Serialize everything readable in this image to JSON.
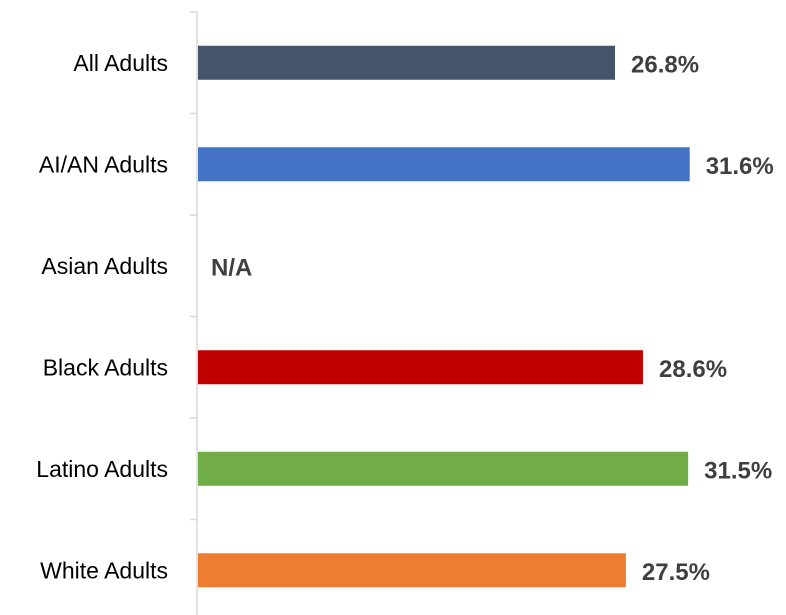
{
  "chart_data": {
    "type": "bar",
    "orientation": "horizontal",
    "categories": [
      "All Adults",
      "AI/AN Adults",
      "Asian Adults",
      "Black Adults",
      "Latino Adults",
      "White Adults"
    ],
    "values": [
      26.8,
      31.6,
      null,
      28.6,
      31.5,
      27.5
    ],
    "data_labels": [
      "26.8%",
      "31.6%",
      "N/A",
      "28.6%",
      "31.5%",
      "27.5%"
    ],
    "colors": [
      "#44546a",
      "#4472c4",
      "#a5a5a5",
      "#c00000",
      "#70ad47",
      "#ed7d31"
    ],
    "xlim": [
      0,
      34
    ],
    "grid": false,
    "legend": "none"
  }
}
